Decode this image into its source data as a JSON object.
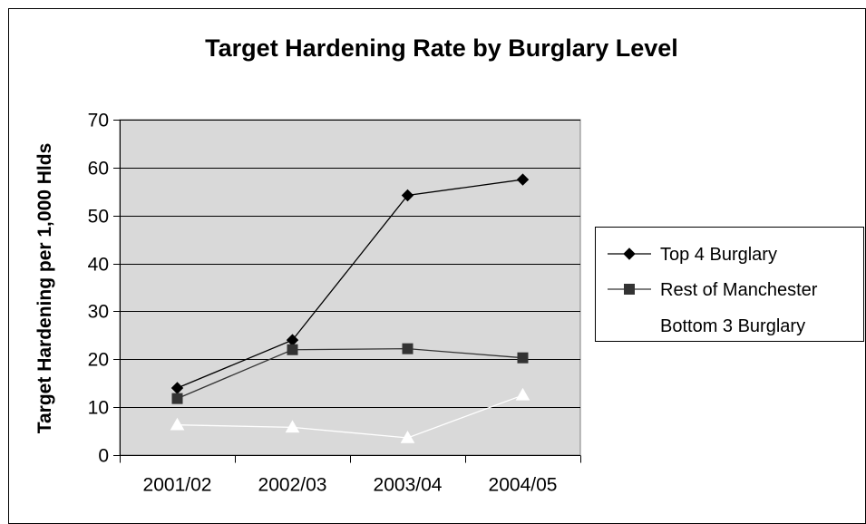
{
  "chart_data": {
    "type": "line",
    "title": "Target Hardening Rate by Burglary Level",
    "xlabel": "",
    "ylabel": "Target Hardening per 1,000 Hlds",
    "categories": [
      "2001/02",
      "2002/03",
      "2003/04",
      "2004/05"
    ],
    "ylim": [
      0,
      70
    ],
    "yticks": [
      0,
      10,
      20,
      30,
      40,
      50,
      60,
      70
    ],
    "grid": true,
    "legend_position": "right",
    "plot_background": "#d9d9d9",
    "series": [
      {
        "name": "Top 4 Burglary",
        "values": [
          14,
          24,
          54.2,
          57.5
        ],
        "marker": "diamond",
        "color": "#000000"
      },
      {
        "name": "Rest of Manchester",
        "values": [
          11.8,
          22,
          22.2,
          20.3
        ],
        "marker": "square",
        "color": "#333333"
      },
      {
        "name": "Bottom 3 Burglary",
        "values": [
          6.3,
          5.8,
          3.6,
          12.5
        ],
        "marker": "triangle",
        "color": "#ffffff"
      }
    ]
  }
}
